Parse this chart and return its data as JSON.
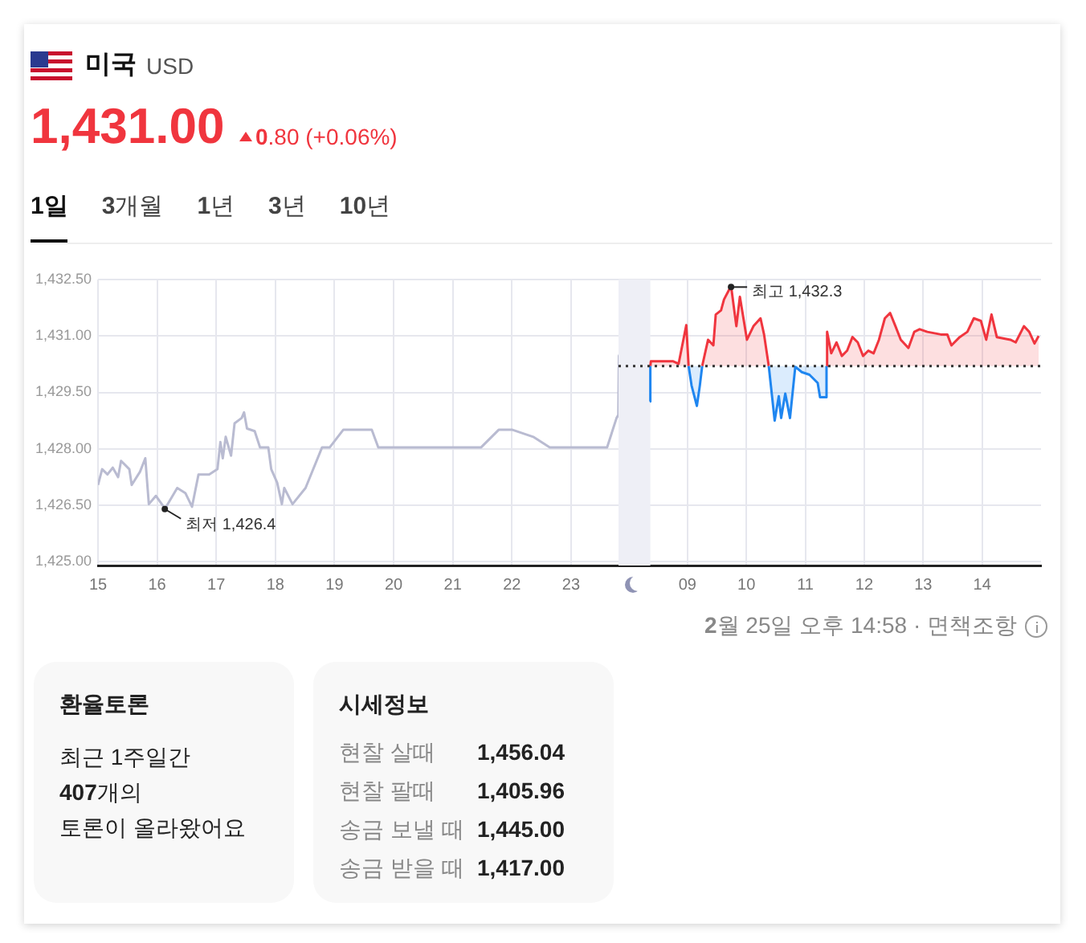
{
  "chart_data": [
    {
      "type": "line",
      "title": "미국",
      "subtitle": "USD",
      "xlim": [
        15,
        23.83
      ],
      "xticks": [
        15,
        16,
        17,
        18,
        19,
        20,
        21,
        22,
        23
      ],
      "ylim": [
        1424.9,
        1432.5
      ],
      "yticks": [
        {
          "value": 1425,
          "label": "1,425.00"
        },
        {
          "value": 1426.5,
          "label": "1,426.50"
        },
        {
          "value": 1428,
          "label": "1,428.00"
        },
        {
          "value": 1429.5,
          "label": "1,429.50"
        },
        {
          "value": 1431,
          "label": "1,431.00"
        },
        {
          "value": 1432.5,
          "label": "1,432.50"
        }
      ],
      "grid": true,
      "series": [
        {
          "color": "#b9bbd1",
          "x": [
            15,
            15.07,
            15.16,
            15.25,
            15.34,
            15.39,
            15.53,
            15.57,
            15.71,
            15.8,
            15.86,
            15.98,
            16.11,
            16.13,
            16.34,
            16.48,
            16.59,
            16.7,
            16.88,
            17.02,
            17.07,
            17.11,
            17.16,
            17.25,
            17.31,
            17.43,
            17.47,
            17.52,
            17.65,
            17.74,
            17.88,
            17.93,
            18.03,
            18.11,
            18.15,
            18.29,
            18.51,
            18.79,
            18.92,
            19.15,
            19.63,
            19.74,
            21.48,
            21.78,
            22.0,
            22.36,
            22.64,
            23.61,
            23.77,
            23.8,
            23.81,
            23.83
          ],
          "values": [
            1427.04,
            1427.46,
            1427.32,
            1427.5,
            1427.25,
            1427.68,
            1427.46,
            1427.04,
            1427.39,
            1427.75,
            1426.53,
            1426.75,
            1426.46,
            1426.4,
            1426.96,
            1426.82,
            1426.46,
            1427.32,
            1427.32,
            1427.46,
            1428.18,
            1427.75,
            1428.32,
            1427.82,
            1428.68,
            1428.82,
            1428.97,
            1428.54,
            1428.47,
            1428.04,
            1428.04,
            1427.46,
            1427.1,
            1426.53,
            1426.96,
            1426.53,
            1426.96,
            1428.04,
            1428.04,
            1428.51,
            1428.51,
            1428.04,
            1428.04,
            1428.51,
            1428.51,
            1428.32,
            1428.04,
            1428.04,
            1428.82,
            1428.9,
            1430.47,
            1430.54
          ]
        }
      ],
      "annotations": [
        "1,431.00",
        "0.80 (+0.06%)",
        "1일",
        "3개월",
        "1년",
        "3년",
        "10년",
        {
          "text": "최저 1,426.4",
          "x": 16.13,
          "y": 1426.4
        },
        "2월 25일 오후 14:58 · 면책조항",
        "환율토론",
        "최근 1주일간",
        "407개의",
        "토론이 올라왔어요",
        "시세정보",
        "현찰 살때",
        "1,456.04",
        "현찰 팔때",
        "1,405.96",
        "송금 보낼 때",
        "1,445.00",
        "송금 받을 때",
        "1,417.00"
      ]
    },
    {
      "type": "area",
      "xlim": [
        7.83,
        15
      ],
      "xticks": [
        {
          "value": 9,
          "label": "09"
        },
        10,
        11,
        12,
        13,
        14
      ],
      "ylim": [
        1424.9,
        1432.5
      ],
      "yticks": [
        1425,
        1426.5,
        1428,
        1429.5,
        1431,
        1432.5
      ],
      "tick_labels": "x",
      "grid": true,
      "series": [
        {
          "color": "#1f86f0",
          "x": [
            8.36,
            8.37,
            8.7,
            9.02,
            9.07,
            9.16,
            9.21,
            9.25,
            9.8,
            10.38,
            10.48,
            10.55,
            10.59,
            10.66,
            10.74,
            10.83,
            10.94,
            11.07,
            11.21,
            11.25,
            11.35,
            11.36
          ],
          "values": [
            1429.26,
            1430.2,
            null,
            1430.2,
            1429.68,
            1429.14,
            1429.68,
            1430.2,
            null,
            1430.2,
            1428.75,
            1429.4,
            1428.82,
            1429.47,
            1428.82,
            1430.18,
            1430.04,
            1429.97,
            1429.75,
            1429.37,
            1429.37,
            1430.2
          ]
        },
        {
          "color": "#f0353e",
          "x": [
            8.37,
            8.38,
            8.75,
            8.85,
            8.98,
            9.02,
            9.1,
            9.25,
            9.35,
            9.44,
            9.48,
            9.57,
            9.62,
            9.74,
            9.83,
            9.89,
            10.01,
            10.12,
            10.24,
            10.3,
            10.38,
            10.8,
            11.36,
            11.37,
            11.44,
            11.53,
            11.62,
            11.71,
            11.8,
            11.89,
            11.98,
            12.07,
            12.16,
            12.25,
            12.35,
            12.44,
            12.53,
            12.62,
            12.75,
            12.85,
            12.94,
            13.07,
            13.3,
            13.41,
            13.48,
            13.62,
            13.75,
            13.86,
            13.98,
            14.07,
            14.16,
            14.25,
            14.48,
            14.57,
            14.71,
            14.8,
            14.89,
            14.96
          ],
          "values": [
            1430.2,
            1430.33,
            1430.33,
            1430.26,
            1431.29,
            1430.2,
            null,
            1430.2,
            1430.9,
            1430.75,
            1431.57,
            1431.68,
            1431.97,
            1432.33,
            1431.26,
            1432.04,
            1430.9,
            1431.26,
            1431.47,
            1431.04,
            1430.2,
            null,
            1430.2,
            1431.11,
            1430.54,
            1430.83,
            1430.47,
            1430.61,
            1430.97,
            1430.83,
            1430.47,
            1430.61,
            1430.54,
            1430.9,
            1431.47,
            1431.61,
            1431.26,
            1430.9,
            1430.68,
            1431.11,
            1431.18,
            1431.11,
            1431.04,
            1431.04,
            1430.75,
            1430.97,
            1431.11,
            1431.47,
            1431.4,
            1430.9,
            1431.57,
            1430.97,
            1430.9,
            1430.83,
            1431.26,
            1431.11,
            1430.8,
            1431.0
          ]
        }
      ],
      "ref_lines": [
        {
          "axis": "y",
          "value": 1430.2,
          "color": "#333333",
          "line_style": "dotted"
        }
      ],
      "bands": [
        {
          "axis": "x",
          "from": 7.83,
          "to": 8.37,
          "color": "#eeeff6"
        }
      ],
      "annotations": [
        {
          "text": "최고 1,432.3",
          "x": 9.74,
          "y": 1432.3
        }
      ]
    }
  ]
}
